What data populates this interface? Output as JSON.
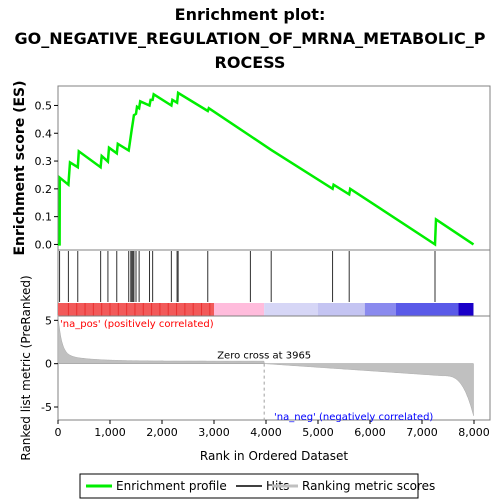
{
  "chart_data": {
    "type": "line",
    "title_lines": [
      "Enrichment plot:",
      "GO_NEGATIVE_REGULATION_OF_MRNA_METABOLIC_P",
      "ROCESS"
    ],
    "top_panel": {
      "ylabel": "Enrichment score (ES)",
      "ylim": [
        -0.02,
        0.57
      ],
      "yticks": [
        0.0,
        0.1,
        0.2,
        0.3,
        0.4,
        0.5
      ],
      "ytick_labels": [
        "0.0",
        "0.1",
        "0.2",
        "0.3",
        "0.4",
        "0.5"
      ],
      "series": [
        {
          "name": "Enrichment profile",
          "color": "#00ee00",
          "x": [
            0,
            30,
            35,
            200,
            230,
            380,
            400,
            820,
            840,
            960,
            980,
            1130,
            1150,
            1360,
            1380,
            1400,
            1420,
            1440,
            1460,
            1500,
            1520,
            1560,
            1580,
            1760,
            1780,
            1820,
            1840,
            2180,
            2200,
            2290,
            2310,
            2880,
            2900,
            3700,
            4100,
            5280,
            5300,
            5600,
            5620,
            7250,
            7270,
            7990
          ],
          "y": [
            0.0,
            0.0,
            0.24,
            0.215,
            0.295,
            0.278,
            0.335,
            0.278,
            0.318,
            0.298,
            0.348,
            0.328,
            0.362,
            0.338,
            0.365,
            0.39,
            0.415,
            0.44,
            0.465,
            0.47,
            0.495,
            0.49,
            0.515,
            0.5,
            0.52,
            0.52,
            0.54,
            0.5,
            0.52,
            0.51,
            0.545,
            0.48,
            0.49,
            0.39,
            0.34,
            0.2,
            0.215,
            0.18,
            0.2,
            0.0,
            0.09,
            0.0
          ]
        }
      ]
    },
    "hits": {
      "name": "Hits",
      "x": [
        30,
        200,
        380,
        820,
        960,
        1130,
        1360,
        1400,
        1420,
        1440,
        1460,
        1500,
        1560,
        1760,
        1820,
        2180,
        2290,
        2310,
        2880,
        3700,
        4100,
        5280,
        5600,
        7250
      ]
    },
    "middle_bar": {
      "pos_label": "'na_pos' (positively correlated)",
      "neg_label": "'na_neg' (negatively correlated)",
      "pos_color": "#ff0000",
      "neg_color": "#0000ff"
    },
    "bottom_panel": {
      "ylabel": "Ranked list metric (PreRanked)",
      "ylim": [
        -6.5,
        5.5
      ],
      "yticks": [
        -5,
        0,
        5
      ],
      "ytick_labels": [
        "-5",
        "0",
        "5"
      ],
      "zero_cross_label": "Zero cross at 3965",
      "zero_cross_x": 3965,
      "fill_color": "#c0c0c0"
    },
    "xaxis": {
      "label": "Rank in Ordered Dataset",
      "xlim": [
        0,
        8000
      ],
      "xticks": [
        0,
        1000,
        2000,
        3000,
        4000,
        5000,
        6000,
        7000,
        8000
      ],
      "xtick_labels": [
        "0",
        "1,000",
        "2,000",
        "3,000",
        "4,000",
        "5,000",
        "6,000",
        "7,000",
        "8,000"
      ]
    },
    "legend": {
      "placement": "bottom",
      "entries": [
        {
          "label": "Enrichment profile",
          "color": "#00ee00"
        },
        {
          "label": "Hits",
          "color": "#404040"
        },
        {
          "label": "Ranking metric scores",
          "color": "#c0c0c0"
        }
      ]
    }
  }
}
